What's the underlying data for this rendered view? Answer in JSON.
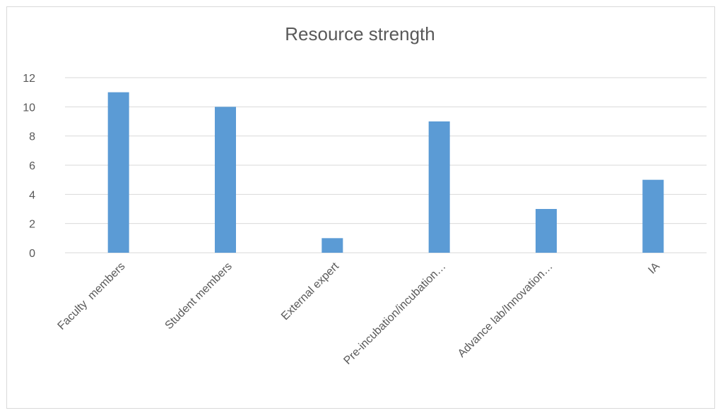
{
  "chart_data": {
    "type": "bar",
    "title": "Resource strength",
    "categories": [
      "Faculty  members",
      "Student members",
      "External expert",
      "Pre-incubation/incubation…",
      "Advance lab/Innovation…",
      "IA"
    ],
    "values": [
      11,
      10,
      1,
      9,
      3,
      5
    ],
    "ylim": [
      0,
      12
    ],
    "yticks": [
      0,
      2,
      4,
      6,
      8,
      10,
      12
    ],
    "grid": true,
    "legend": "none",
    "colors": {
      "bar": "#5b9bd5",
      "grid": "#d9d9d9",
      "text": "#595959",
      "title": "#595959"
    }
  }
}
